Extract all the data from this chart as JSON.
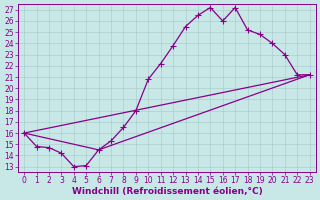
{
  "xlabel": "Windchill (Refroidissement éolien,°C)",
  "bg_color": "#c8e8e8",
  "line_color": "#880088",
  "grid_color": "#a8c8c8",
  "xlim": [
    -0.5,
    23.5
  ],
  "ylim": [
    12.5,
    27.5
  ],
  "xticks": [
    0,
    1,
    2,
    3,
    4,
    5,
    6,
    7,
    8,
    9,
    10,
    11,
    12,
    13,
    14,
    15,
    16,
    17,
    18,
    19,
    20,
    21,
    22,
    23
  ],
  "yticks": [
    13,
    14,
    15,
    16,
    17,
    18,
    19,
    20,
    21,
    22,
    23,
    24,
    25,
    26,
    27
  ],
  "line1_x": [
    0,
    1,
    2,
    3,
    4,
    5,
    6,
    7,
    8,
    9,
    10,
    11,
    12,
    13,
    14,
    15,
    16,
    17,
    18,
    19,
    20,
    21,
    22,
    23
  ],
  "line1_y": [
    16.0,
    14.8,
    14.7,
    14.2,
    13.0,
    13.1,
    14.5,
    15.3,
    16.5,
    18.0,
    20.8,
    22.2,
    23.8,
    25.5,
    26.5,
    27.2,
    26.0,
    27.2,
    25.2,
    24.8,
    24.0,
    23.0,
    21.2,
    21.2
  ],
  "line2_x": [
    0,
    6,
    23
  ],
  "line2_y": [
    16.0,
    14.5,
    21.2
  ],
  "line3_x": [
    0,
    23
  ],
  "line3_y": [
    16.0,
    21.2
  ],
  "marker": "+",
  "markersize": 4.5,
  "linewidth": 0.9,
  "tick_fontsize": 5.5,
  "label_fontsize": 6.5
}
